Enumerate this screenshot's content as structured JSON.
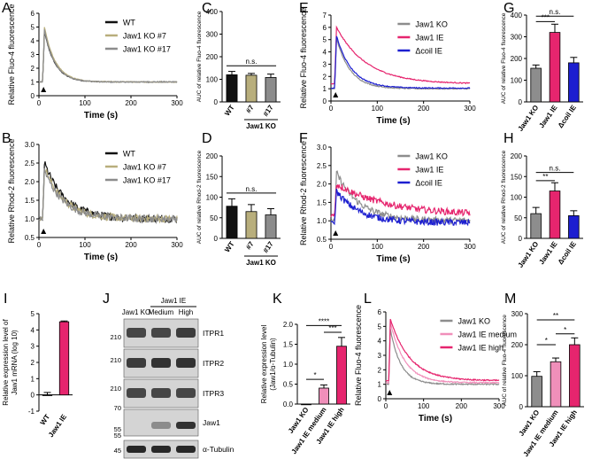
{
  "colors": {
    "black": "#000000",
    "wt": "#111111",
    "ko7": "#b8ae7c",
    "ko17": "#8c8c8c",
    "ko_grey": "#8d8d8d",
    "ie_pink": "#e6256e",
    "coil_blue": "#1d1fd0",
    "medium_pink": "#f08fba",
    "blot_dark": "#1a1a1a",
    "blot_bg": "#cfcfcf"
  },
  "panel_labels": [
    "A",
    "B",
    "C",
    "D",
    "E",
    "F",
    "G",
    "H",
    "I",
    "J",
    "K",
    "L",
    "M"
  ],
  "chart_data": [
    {
      "id": "A",
      "type": "line",
      "xlabel": "Time (s)",
      "ylabel": "Relative Fluo-4 fluorescence",
      "xlim": [
        0,
        300
      ],
      "ylim": [
        0,
        6
      ],
      "xticks": [
        0,
        100,
        200,
        300
      ],
      "yticks": [
        0,
        1,
        2,
        3,
        4,
        5,
        6
      ],
      "series": [
        {
          "name": "WT",
          "color": "#111111",
          "peak": 4.7,
          "base": 1.0,
          "tau": 23,
          "noise": 0.03
        },
        {
          "name": "Jaw1 KO #7",
          "color": "#b8ae7c",
          "peak": 5.0,
          "base": 1.0,
          "tau": 24,
          "noise": 0.03
        },
        {
          "name": "Jaw1 KO #17",
          "color": "#8c8c8c",
          "peak": 4.8,
          "base": 1.0,
          "tau": 23,
          "noise": 0.03
        }
      ],
      "stim_time": 10,
      "legend": "top-right"
    },
    {
      "id": "B",
      "type": "line",
      "xlabel": "Time (s)",
      "ylabel": "Relative Rhod-2 fluorescence",
      "xlim": [
        0,
        300
      ],
      "ylim": [
        0.5,
        3.0
      ],
      "xticks": [
        0,
        100,
        200,
        300
      ],
      "yticks": [
        0.5,
        1.0,
        1.5,
        2.0,
        2.5,
        3.0
      ],
      "ytick_labels": [
        "0.5",
        "1.0",
        "1.5",
        "2.0",
        "2.5",
        "3.0"
      ],
      "series": [
        {
          "name": "WT",
          "color": "#111111",
          "peak": 2.5,
          "base": 1.0,
          "tau": 45,
          "noise": 0.1
        },
        {
          "name": "Jaw1 KO #7",
          "color": "#b8ae7c",
          "peak": 2.4,
          "base": 1.0,
          "tau": 42,
          "noise": 0.1
        },
        {
          "name": "Jaw1 KO #17",
          "color": "#8c8c8c",
          "peak": 2.3,
          "base": 1.0,
          "tau": 42,
          "noise": 0.1
        }
      ],
      "stim_time": 10,
      "legend": "top-right"
    },
    {
      "id": "C",
      "type": "bar",
      "ylabel": "AUC of relative Fluo-4 fluorescence",
      "categories": [
        "WT",
        "#7",
        "#17"
      ],
      "values": [
        120,
        118,
        108
      ],
      "errors": [
        15,
        8,
        15
      ],
      "colors": [
        "#111111",
        "#b8ae7c",
        "#8c8c8c"
      ],
      "ylim": [
        0,
        400
      ],
      "yticks": [
        0,
        100,
        200,
        300,
        400
      ],
      "group_label": "Jaw1 KO",
      "group_indices": [
        1,
        2
      ],
      "significance": [
        {
          "from": 0,
          "to": 2,
          "label": "n.s.",
          "y": 160
        }
      ]
    },
    {
      "id": "D",
      "type": "bar",
      "ylabel": "AUC of relative Rhod-2 fluorescence",
      "categories": [
        "WT",
        "#7",
        "#17"
      ],
      "values": [
        78,
        65,
        57
      ],
      "errors": [
        18,
        17,
        15
      ],
      "colors": [
        "#111111",
        "#b8ae7c",
        "#8c8c8c"
      ],
      "ylim": [
        0,
        200
      ],
      "yticks": [
        0,
        50,
        100,
        150,
        200
      ],
      "group_label": "Jaw1 KO",
      "group_indices": [
        1,
        2
      ],
      "significance": [
        {
          "from": 0,
          "to": 2,
          "label": "n.s.",
          "y": 110
        }
      ]
    },
    {
      "id": "E",
      "type": "line",
      "xlabel": "Time (s)",
      "ylabel": "Relative Fluo-4 fluorescence",
      "xlim": [
        0,
        300
      ],
      "ylim": [
        0,
        7
      ],
      "xticks": [
        0,
        100,
        200,
        300
      ],
      "yticks": [
        0,
        1,
        2,
        3,
        4,
        5,
        6,
        7
      ],
      "series": [
        {
          "name": "Jaw1 KO",
          "color": "#8d8d8d",
          "peak": 5.1,
          "base": 1.0,
          "tau": 30,
          "noise": 0.04
        },
        {
          "name": "Jaw1 IE",
          "color": "#e6256e",
          "peak": 6.0,
          "base": 1.4,
          "tau": 65,
          "noise": 0.04
        },
        {
          "name": "Δcoil IE",
          "color": "#1d1fd0",
          "peak": 5.3,
          "base": 1.05,
          "tau": 33,
          "noise": 0.04
        }
      ],
      "stim_time": 10,
      "legend": "top-right"
    },
    {
      "id": "F",
      "type": "line",
      "xlabel": "Time (s)",
      "ylabel": "Relative Rhod-2 fluorescence",
      "xlim": [
        0,
        300
      ],
      "ylim": [
        0.5,
        3.0
      ],
      "xticks": [
        0,
        100,
        200,
        300
      ],
      "yticks": [
        0.5,
        1.0,
        1.5,
        2.0,
        2.5,
        3.0
      ],
      "ytick_labels": [
        "0.5",
        "1.0",
        "1.5",
        "2.0",
        "2.5",
        "3.0"
      ],
      "series": [
        {
          "name": "Jaw1 KO",
          "color": "#8d8d8d",
          "peak": 2.3,
          "base": 1.0,
          "tau": 50,
          "noise": 0.09
        },
        {
          "name": "Jaw1 IE",
          "color": "#e6256e",
          "peak": 2.0,
          "base": 1.15,
          "tau": 110,
          "noise": 0.09
        },
        {
          "name": "Δcoil IE",
          "color": "#1d1fd0",
          "peak": 1.8,
          "base": 0.95,
          "tau": 50,
          "noise": 0.09
        }
      ],
      "stim_time": 10,
      "legend": "top-right"
    },
    {
      "id": "G",
      "type": "bar",
      "ylabel": "AUC of relative Fluo-4 fluorescence",
      "categories": [
        "Jaw1 KO",
        "Jaw1 IE",
        "Δcoil IE"
      ],
      "values": [
        155,
        320,
        180
      ],
      "errors": [
        15,
        38,
        25
      ],
      "colors": [
        "#8d8d8d",
        "#e6256e",
        "#1d1fd0"
      ],
      "ylim": [
        0,
        400
      ],
      "yticks": [
        0,
        100,
        200,
        300,
        400
      ],
      "significance": [
        {
          "from": 0,
          "to": 1,
          "label": "***",
          "y": 370
        },
        {
          "from": 0,
          "to": 2,
          "label": "n.s.",
          "y": 395
        }
      ]
    },
    {
      "id": "H",
      "type": "bar",
      "ylabel": "AUC of relative Rhod-2 fluorescence",
      "categories": [
        "Jaw1 KO",
        "Jaw1 IE",
        "Δcoil IE"
      ],
      "values": [
        60,
        115,
        55
      ],
      "errors": [
        15,
        20,
        12
      ],
      "colors": [
        "#8d8d8d",
        "#e6256e",
        "#1d1fd0"
      ],
      "ylim": [
        0,
        200
      ],
      "yticks": [
        0,
        50,
        100,
        150,
        200
      ],
      "significance": [
        {
          "from": 0,
          "to": 1,
          "label": "**",
          "y": 140
        },
        {
          "from": 0,
          "to": 2,
          "label": "n.s.",
          "y": 160
        }
      ]
    },
    {
      "id": "I",
      "type": "bar",
      "ylabel": "Relative expression level of",
      "ylabel2": "Jaw1 mRNA (log 10)",
      "categories": [
        "WT",
        "Jaw1 IE"
      ],
      "values": [
        0.0,
        4.5
      ],
      "errors": [
        0.15,
        0.05
      ],
      "colors": [
        "#111111",
        "#e6256e"
      ],
      "ylim": [
        -1,
        5
      ],
      "yticks": [
        -1,
        0,
        1,
        2,
        3,
        4,
        5
      ]
    },
    {
      "id": "K",
      "type": "bar",
      "ylabel": "Relative expression level",
      "ylabel2": "(Jaw1/α-Tubulin)",
      "categories": [
        "Jaw1 KO",
        "Jaw1 IE medium",
        "Jaw1 IE high"
      ],
      "values": [
        0.0,
        0.4,
        1.45
      ],
      "errors": [
        0.0,
        0.08,
        0.22
      ],
      "colors": [
        "#8d8d8d",
        "#f08fba",
        "#e6256e"
      ],
      "ylim": [
        0,
        2
      ],
      "yticks": [
        0.0,
        0.5,
        1.0,
        1.5,
        2.0
      ],
      "ytick_labels": [
        "0.0",
        "0.5",
        "1.0",
        "1.5",
        "2.0"
      ],
      "significance": [
        {
          "from": 0,
          "to": 1,
          "label": "*",
          "y": 0.62
        },
        {
          "from": 1,
          "to": 2,
          "label": "***",
          "y": 1.8
        },
        {
          "from": 0,
          "to": 2,
          "label": "****",
          "y": 1.97
        }
      ]
    },
    {
      "id": "L",
      "type": "line",
      "xlabel": "Time (s)",
      "ylabel": "Relative Fluo-4 fluorescence",
      "xlim": [
        0,
        300
      ],
      "ylim": [
        0,
        6
      ],
      "xticks": [
        0,
        100,
        200,
        300
      ],
      "yticks": [
        0,
        1,
        2,
        3,
        4,
        5,
        6
      ],
      "series": [
        {
          "name": "Jaw1 KO",
          "color": "#8d8d8d",
          "peak": 4.8,
          "base": 1.0,
          "tau": 28,
          "noise": 0.04
        },
        {
          "name": "Jaw1 IE medium",
          "color": "#f08fba",
          "peak": 5.3,
          "base": 1.1,
          "tau": 38,
          "noise": 0.04
        },
        {
          "name": "Jaw1 IE high",
          "color": "#e6256e",
          "peak": 5.5,
          "base": 1.25,
          "tau": 52,
          "noise": 0.04
        }
      ],
      "stim_time": 10,
      "legend": "top-right"
    },
    {
      "id": "M",
      "type": "bar",
      "ylabel": "AUC of relative Fluo-4 fluorescence",
      "categories": [
        "Jaw1 KO",
        "Jaw1 IE medium",
        "Jaw1 IE high"
      ],
      "values": [
        98,
        145,
        200
      ],
      "errors": [
        15,
        12,
        22
      ],
      "colors": [
        "#8d8d8d",
        "#f08fba",
        "#e6256e"
      ],
      "ylim": [
        0,
        300
      ],
      "yticks": [
        0,
        100,
        200,
        300
      ],
      "significance": [
        {
          "from": 0,
          "to": 1,
          "label": "*",
          "y": 200
        },
        {
          "from": 1,
          "to": 2,
          "label": "*",
          "y": 235
        },
        {
          "from": 0,
          "to": 2,
          "label": "**",
          "y": 280
        }
      ]
    }
  ],
  "blot": {
    "header": [
      "Jaw1 KO",
      "Jaw1 IE",
      "Medium",
      "High"
    ],
    "mw_markers": [
      "210",
      "210",
      "210",
      "70",
      "55",
      "55",
      "45"
    ],
    "rows": [
      {
        "label": "ITPR1",
        "intensity": [
          0.8,
          0.8,
          0.85
        ]
      },
      {
        "label": "ITPR2",
        "intensity": [
          0.85,
          0.9,
          0.9
        ]
      },
      {
        "label": "ITPR3",
        "intensity": [
          0.8,
          0.8,
          0.8
        ]
      },
      {
        "label": "Jaw1",
        "intensity": [
          0.0,
          0.45,
          0.9
        ]
      },
      {
        "label": "α-Tubulin",
        "intensity": [
          0.95,
          0.95,
          0.95
        ]
      }
    ]
  }
}
